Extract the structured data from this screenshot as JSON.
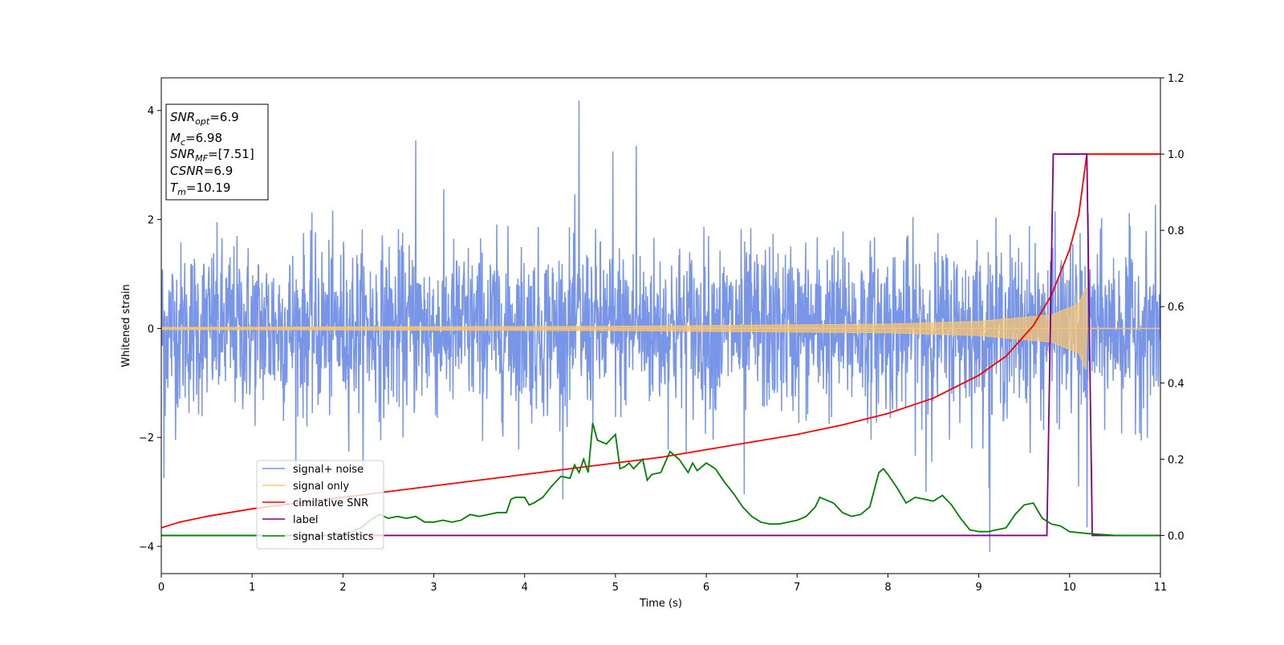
{
  "chart_data": {
    "type": "line",
    "xlabel": "Time (s)",
    "ylabel": "Whitened strain",
    "xlim": [
      0,
      11
    ],
    "ylim_left": [
      -4.5,
      4.6
    ],
    "ylim_right": [
      -0.1,
      1.2
    ],
    "x_ticks": [
      "0",
      "1",
      "2",
      "3",
      "4",
      "5",
      "6",
      "7",
      "8",
      "9",
      "10",
      "11"
    ],
    "y_ticks_left": [
      "−4",
      "−2",
      "0",
      "2",
      "4"
    ],
    "y_ticks_right": [
      "0.0",
      "0.2",
      "0.4",
      "0.6",
      "0.8",
      "1.0",
      "1.2"
    ],
    "annotation": {
      "snr_opt": {
        "main": "SNR",
        "sub": "opt",
        "value": "=6.9"
      },
      "mc": {
        "main": "M",
        "sub": "c",
        "value": "=6.98"
      },
      "snr_mf": {
        "main": "SNR",
        "sub": "MF",
        "value": "=[7.51]"
      },
      "csnr": {
        "main": "CSNR",
        "value": "=6.9"
      },
      "tm": {
        "main": "T",
        "sub": "m",
        "value": "=10.19"
      }
    },
    "legend_position": "lower-left",
    "series": [
      {
        "name": "signal+ noise",
        "axis": "left",
        "color": "#7895e8",
        "description": "whitened noise with amplitude about ±1.5 (peaks to ±4)",
        "envelope_typical": 1.5,
        "x_range": [
          0,
          11
        ],
        "peaks": [
          [
            0.03,
            -2.75
          ],
          [
            2.8,
            3.45
          ],
          [
            4.6,
            4.18
          ],
          [
            4.97,
            3.25
          ],
          [
            5.23,
            3.35
          ],
          [
            6.42,
            -3.05
          ],
          [
            8.42,
            -3.0
          ],
          [
            9.12,
            -4.1
          ],
          [
            10.19,
            -3.65
          ],
          [
            10.1,
            -2.9
          ]
        ]
      },
      {
        "name": "signal only",
        "axis": "left",
        "color": "#f5c573",
        "description": "chirp with amplitude growing to ~0.8 near 10.19 s",
        "amplitude_points": [
          [
            0,
            0.02
          ],
          [
            5,
            0.04
          ],
          [
            8,
            0.08
          ],
          [
            9,
            0.13
          ],
          [
            9.8,
            0.25
          ],
          [
            10.1,
            0.45
          ],
          [
            10.19,
            0.8
          ]
        ],
        "merger_time": 10.19
      },
      {
        "name": "cimilative SNR",
        "axis": "right",
        "color": "#ff0000",
        "x": [
          0,
          0.2,
          0.5,
          1,
          1.5,
          2,
          2.5,
          3,
          3.5,
          4,
          4.5,
          5,
          5.5,
          6,
          6.5,
          7,
          7.5,
          8,
          8.5,
          9,
          9.3,
          9.6,
          9.8,
          10.0,
          10.1,
          10.19,
          11
        ],
        "y": [
          0.02,
          0.035,
          0.05,
          0.07,
          0.085,
          0.1,
          0.115,
          0.13,
          0.145,
          0.16,
          0.175,
          0.19,
          0.205,
          0.225,
          0.245,
          0.265,
          0.29,
          0.32,
          0.36,
          0.42,
          0.47,
          0.55,
          0.63,
          0.75,
          0.84,
          1.0,
          1.0
        ]
      },
      {
        "name": "label",
        "axis": "right",
        "color": "#800080",
        "x": [
          0,
          9.75,
          9.82,
          10.19,
          10.25,
          11
        ],
        "y": [
          0,
          0,
          1,
          1,
          0,
          0
        ]
      },
      {
        "name": "signal statistics",
        "axis": "right",
        "color": "#008000",
        "x": [
          0,
          0.5,
          1,
          1.5,
          2,
          2.2,
          2.3,
          2.4,
          2.5,
          2.6,
          2.7,
          2.8,
          2.9,
          3.0,
          3.1,
          3.2,
          3.3,
          3.4,
          3.5,
          3.6,
          3.7,
          3.8,
          3.85,
          3.9,
          4.0,
          4.05,
          4.1,
          4.2,
          4.3,
          4.4,
          4.5,
          4.55,
          4.6,
          4.65,
          4.7,
          4.75,
          4.8,
          4.9,
          5.0,
          5.05,
          5.1,
          5.15,
          5.2,
          5.3,
          5.35,
          5.4,
          5.5,
          5.6,
          5.7,
          5.8,
          5.85,
          5.9,
          6.0,
          6.1,
          6.2,
          6.3,
          6.4,
          6.5,
          6.6,
          6.7,
          6.8,
          6.9,
          7.0,
          7.1,
          7.2,
          7.25,
          7.3,
          7.4,
          7.5,
          7.6,
          7.7,
          7.8,
          7.9,
          7.95,
          8.0,
          8.1,
          8.2,
          8.3,
          8.4,
          8.5,
          8.6,
          8.7,
          8.8,
          8.9,
          9.0,
          9.1,
          9.2,
          9.3,
          9.4,
          9.5,
          9.6,
          9.7,
          9.8,
          9.9,
          10.0,
          10.2,
          10.5,
          11
        ],
        "y": [
          0.0,
          0.0,
          0.0,
          0.0,
          0.0,
          0.02,
          0.04,
          0.055,
          0.045,
          0.05,
          0.045,
          0.05,
          0.035,
          0.035,
          0.04,
          0.035,
          0.04,
          0.055,
          0.05,
          0.055,
          0.06,
          0.06,
          0.095,
          0.1,
          0.1,
          0.08,
          0.085,
          0.1,
          0.13,
          0.155,
          0.15,
          0.185,
          0.165,
          0.2,
          0.165,
          0.295,
          0.25,
          0.24,
          0.265,
          0.175,
          0.18,
          0.19,
          0.175,
          0.2,
          0.145,
          0.16,
          0.165,
          0.22,
          0.2,
          0.165,
          0.19,
          0.17,
          0.19,
          0.175,
          0.14,
          0.11,
          0.075,
          0.05,
          0.035,
          0.03,
          0.03,
          0.035,
          0.04,
          0.05,
          0.075,
          0.1,
          0.095,
          0.085,
          0.06,
          0.05,
          0.055,
          0.075,
          0.165,
          0.175,
          0.16,
          0.125,
          0.085,
          0.1,
          0.095,
          0.09,
          0.105,
          0.08,
          0.045,
          0.015,
          0.01,
          0.01,
          0.015,
          0.02,
          0.055,
          0.08,
          0.085,
          0.045,
          0.03,
          0.025,
          0.01,
          0.005,
          0.0,
          0.0
        ]
      }
    ]
  }
}
